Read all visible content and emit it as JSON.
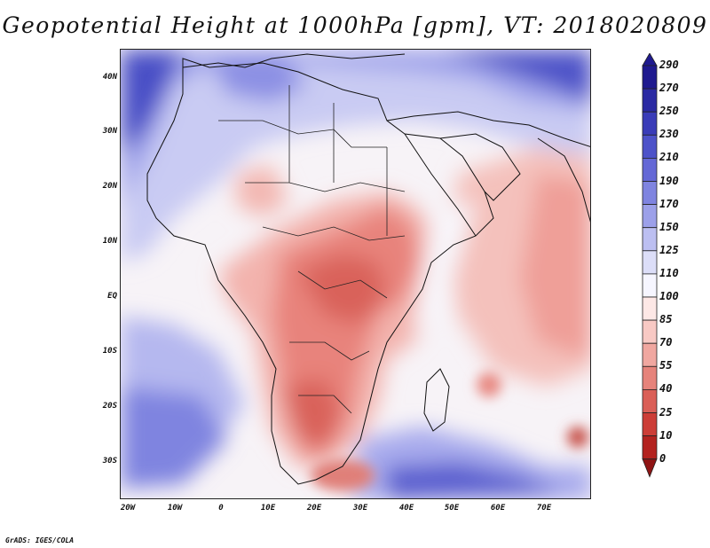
{
  "title": "Geopotential Height at 1000hPa [gpm], VT: 2018020809",
  "footer": "GrADS: IGES/COLA",
  "axes": {
    "lat_labels": [
      "40N",
      "30N",
      "20N",
      "10N",
      "EQ",
      "10S",
      "20S",
      "30S"
    ],
    "lon_labels": [
      "20W",
      "10W",
      "0",
      "10E",
      "20E",
      "30E",
      "40E",
      "50E",
      "60E",
      "70E"
    ]
  },
  "colorbar": {
    "levels": [
      "290",
      "270",
      "250",
      "230",
      "210",
      "190",
      "170",
      "150",
      "125",
      "110",
      "100",
      "85",
      "70",
      "55",
      "40",
      "25",
      "10",
      "0"
    ],
    "colors": [
      "#1f1a8f",
      "#2b2aa3",
      "#3a3cb8",
      "#4d52c9",
      "#6468d6",
      "#7f84e0",
      "#9ca0e9",
      "#bcbff1",
      "#dcdef8",
      "#f6f6ff",
      "#fde8e6",
      "#f8c9c4",
      "#f0a7a0",
      "#e6837b",
      "#da5f57",
      "#cc3d37",
      "#b3221f",
      "#8f1414"
    ]
  },
  "chart_data": {
    "type": "heatmap",
    "title": "Geopotential Height at 1000hPa [gpm], VT: 2018020809",
    "variable": "Geopotential Height",
    "level": "1000hPa",
    "units": "gpm",
    "valid_time": "2018020809",
    "lon_range": [
      -22,
      80
    ],
    "lat_range": [
      -36,
      45
    ],
    "xticks": [
      "20W",
      "10W",
      "0",
      "10E",
      "20E",
      "30E",
      "40E",
      "50E",
      "60E",
      "70E"
    ],
    "yticks": [
      "40N",
      "30N",
      "20N",
      "10N",
      "EQ",
      "10S",
      "20S",
      "30S"
    ],
    "colorbar_levels": [
      0,
      10,
      25,
      40,
      55,
      70,
      85,
      100,
      110,
      125,
      150,
      170,
      190,
      210,
      230,
      250,
      270,
      290
    ]
  }
}
